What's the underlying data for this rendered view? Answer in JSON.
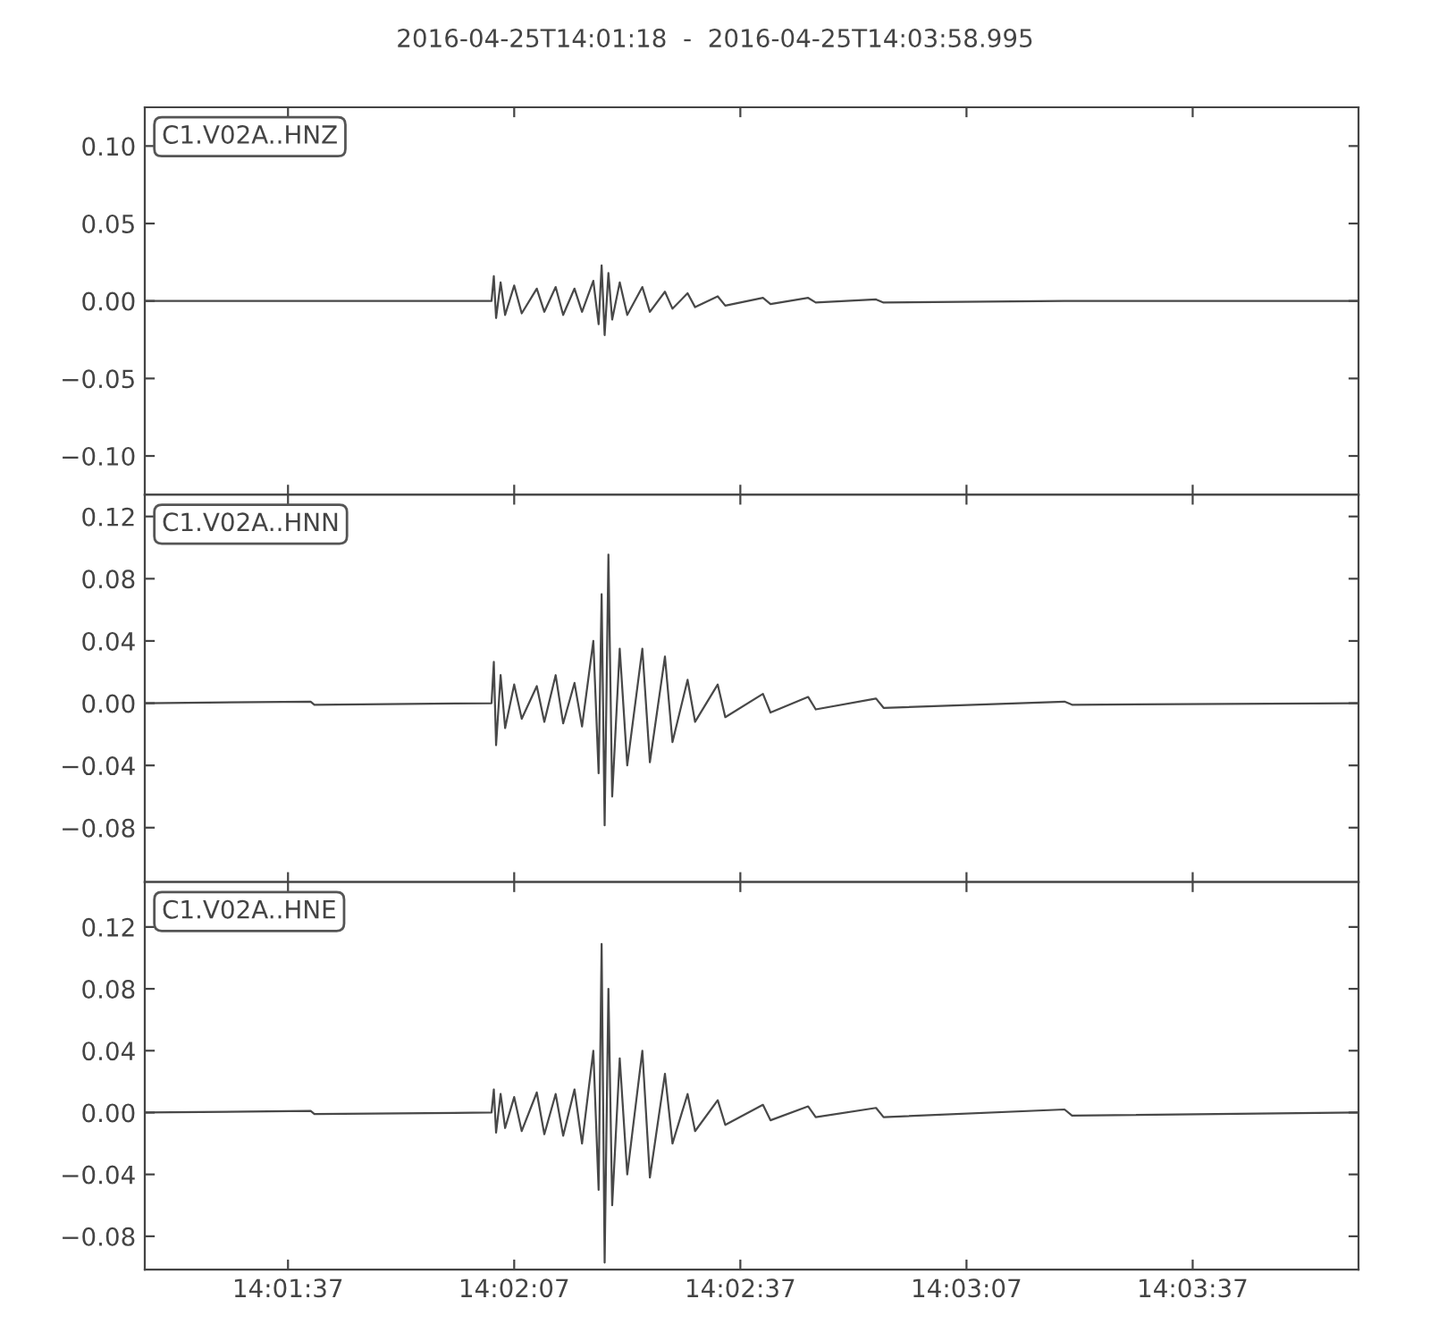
{
  "chart_data": [
    {
      "type": "line",
      "title": "2016-04-25T14:01:18  -  2016-04-25T14:03:58.995",
      "annotations": [
        "C1.V02A..HNZ"
      ],
      "tick_labels": "y",
      "xlim": [
        14.021667,
        14.066388
      ],
      "xticks": [
        {
          "value": 14.026944,
          "label": null
        },
        {
          "value": 14.035278,
          "label": null
        },
        {
          "value": 14.043611,
          "label": null
        },
        {
          "value": 14.051944,
          "label": null
        },
        {
          "value": 14.060278,
          "label": null
        }
      ],
      "ylim": [
        -0.125,
        0.125
      ],
      "yticks": [
        {
          "value": -0.1,
          "label": "−0.10"
        },
        {
          "value": -0.05,
          "label": "−0.05"
        },
        {
          "value": 0,
          "label": "0.00"
        },
        {
          "value": 0.05,
          "label": "0.05"
        },
        {
          "value": 0.1,
          "label": "0.10"
        }
      ],
      "series": [
        {
          "color": "#484848",
          "x": [
            14.021667,
            14.027778,
            14.027917,
            14.034444,
            14.034528,
            14.034611,
            14.034778,
            14.034944,
            14.035278,
            14.035556,
            14.036111,
            14.036389,
            14.036806,
            14.037083,
            14.0375,
            14.037778,
            14.038194,
            14.038389,
            14.0385,
            14.038611,
            14.03875,
            14.038889,
            14.039167,
            14.039444,
            14.04,
            14.040278,
            14.040833,
            14.041111,
            14.041667,
            14.041944,
            14.042778,
            14.043056,
            14.044444,
            14.044722,
            14.046111,
            14.046389,
            14.048611,
            14.048889,
            14.055556,
            14.055833,
            14.066388
          ],
          "values": [
            0,
            0,
            0,
            0,
            0.016,
            -0.011,
            0.012,
            -0.009,
            0.01,
            -0.008,
            0.008,
            -0.007,
            0.009,
            -0.009,
            0.008,
            -0.007,
            0.013,
            -0.015,
            0.023,
            -0.022,
            0.018,
            -0.012,
            0.012,
            -0.009,
            0.009,
            -0.007,
            0.006,
            -0.005,
            0.005,
            -0.004,
            0.003,
            -0.003,
            0.002,
            -0.002,
            0.002,
            -0.001,
            0.001,
            -0.001,
            0,
            0,
            0
          ]
        }
      ]
    },
    {
      "type": "line",
      "annotations": [
        "C1.V02A..HNN"
      ],
      "tick_labels": "y",
      "xlim": [
        14.021667,
        14.066388
      ],
      "xticks": [
        {
          "value": 14.026944,
          "label": null
        },
        {
          "value": 14.035278,
          "label": null
        },
        {
          "value": 14.043611,
          "label": null
        },
        {
          "value": 14.051944,
          "label": null
        },
        {
          "value": 14.060278,
          "label": null
        }
      ],
      "ylim": [
        -0.115,
        0.134
      ],
      "yticks": [
        {
          "value": -0.08,
          "label": "−0.08"
        },
        {
          "value": -0.04,
          "label": "−0.04"
        },
        {
          "value": 0,
          "label": "0.00"
        },
        {
          "value": 0.04,
          "label": "0.04"
        },
        {
          "value": 0.08,
          "label": "0.08"
        },
        {
          "value": 0.12,
          "label": "0.12"
        }
      ],
      "series": [
        {
          "color": "#484848",
          "x": [
            14.021667,
            14.027778,
            14.027917,
            14.034444,
            14.034528,
            14.034611,
            14.034778,
            14.034944,
            14.035278,
            14.035556,
            14.036111,
            14.036389,
            14.036806,
            14.037083,
            14.0375,
            14.037778,
            14.038194,
            14.038389,
            14.0385,
            14.038611,
            14.03875,
            14.038889,
            14.039167,
            14.039444,
            14.04,
            14.040278,
            14.040833,
            14.041111,
            14.041667,
            14.041944,
            14.042778,
            14.043056,
            14.044444,
            14.044722,
            14.046111,
            14.046389,
            14.048611,
            14.048889,
            14.055556,
            14.055833,
            14.066388
          ],
          "values": [
            0,
            0.001,
            -0.001,
            0,
            0.0265,
            -0.027,
            0.018,
            -0.016,
            0.012,
            -0.01,
            0.011,
            -0.012,
            0.018,
            -0.013,
            0.013,
            -0.015,
            0.04,
            -0.045,
            0.07,
            -0.0785,
            0.0955,
            -0.06,
            0.035,
            -0.04,
            0.035,
            -0.038,
            0.03,
            -0.025,
            0.015,
            -0.012,
            0.012,
            -0.009,
            0.006,
            -0.006,
            0.004,
            -0.004,
            0.003,
            -0.003,
            0.001,
            -0.001,
            0
          ]
        }
      ]
    },
    {
      "type": "line",
      "annotations": [
        "C1.V02A..HNE"
      ],
      "xlim": [
        14.021667,
        14.066388
      ],
      "xticks": [
        {
          "value": 14.026944,
          "label": "14:01:37"
        },
        {
          "value": 14.035278,
          "label": "14:02:07"
        },
        {
          "value": 14.043611,
          "label": "14:02:37"
        },
        {
          "value": 14.051944,
          "label": "14:03:07"
        },
        {
          "value": 14.060278,
          "label": "14:03:37"
        }
      ],
      "ylim": [
        -0.1015,
        0.149
      ],
      "yticks": [
        {
          "value": -0.08,
          "label": "−0.08"
        },
        {
          "value": -0.04,
          "label": "−0.04"
        },
        {
          "value": 0,
          "label": "0.00"
        },
        {
          "value": 0.04,
          "label": "0.04"
        },
        {
          "value": 0.08,
          "label": "0.08"
        },
        {
          "value": 0.12,
          "label": "0.12"
        }
      ],
      "series": [
        {
          "color": "#484848",
          "x": [
            14.021667,
            14.027778,
            14.027917,
            14.034444,
            14.034528,
            14.034611,
            14.034778,
            14.034944,
            14.035278,
            14.035556,
            14.036111,
            14.036389,
            14.036806,
            14.037083,
            14.0375,
            14.037778,
            14.038194,
            14.038389,
            14.0385,
            14.038611,
            14.03875,
            14.038889,
            14.039167,
            14.039444,
            14.04,
            14.040278,
            14.040833,
            14.041111,
            14.041667,
            14.041944,
            14.042778,
            14.043056,
            14.044444,
            14.044722,
            14.046111,
            14.046389,
            14.048611,
            14.048889,
            14.055556,
            14.055833,
            14.066388
          ],
          "values": [
            0,
            0.001,
            -0.001,
            0,
            0.015,
            -0.013,
            0.012,
            -0.01,
            0.01,
            -0.012,
            0.013,
            -0.014,
            0.012,
            -0.015,
            0.015,
            -0.02,
            0.04,
            -0.05,
            0.109,
            -0.097,
            0.08,
            -0.06,
            0.035,
            -0.04,
            0.04,
            -0.042,
            0.025,
            -0.02,
            0.012,
            -0.012,
            0.008,
            -0.008,
            0.005,
            -0.005,
            0.004,
            -0.003,
            0.003,
            -0.003,
            0.002,
            -0.002,
            0
          ]
        }
      ]
    }
  ]
}
